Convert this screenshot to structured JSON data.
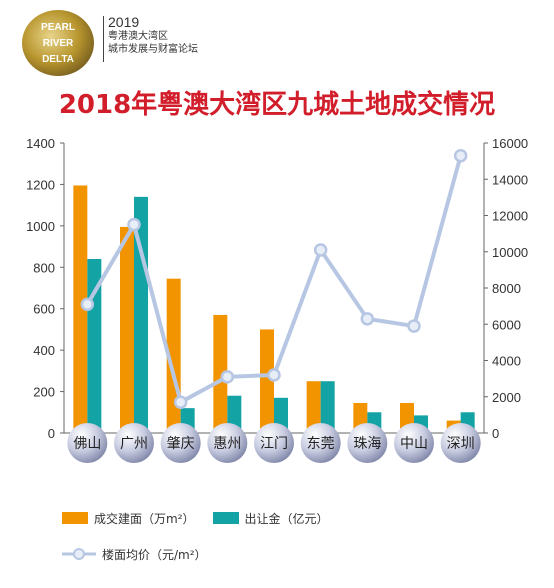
{
  "header": {
    "logo_lines": [
      "PEARL",
      "RIVER",
      "DELTA"
    ],
    "year": "2019",
    "subtitle_line1": "粤港澳大湾区",
    "subtitle_line2": "城市发展与财富论坛"
  },
  "colors": {
    "title": "#d21e2b",
    "area_bar": "#f29400",
    "amount_bar": "#14a3a5",
    "price_line": "#b7c7e3",
    "logo_gold": "#b8962e"
  },
  "chart_data": {
    "type": "bar",
    "title": "2018年粤澳大湾区九城土地成交情况",
    "categories": [
      "佛山",
      "广州",
      "肇庆",
      "惠州",
      "江门",
      "东莞",
      "珠海",
      "中山",
      "深圳"
    ],
    "series": [
      {
        "name": "成交建面（万m²）",
        "type": "bar",
        "axis": "left",
        "values": [
          1195,
          995,
          745,
          570,
          500,
          250,
          145,
          145,
          60
        ]
      },
      {
        "name": "出让金（亿元）",
        "type": "bar",
        "axis": "left",
        "values": [
          840,
          1140,
          120,
          180,
          170,
          250,
          100,
          85,
          100
        ]
      },
      {
        "name": "楼面均价（元/m²）",
        "type": "line",
        "axis": "right",
        "values": [
          7100,
          11500,
          1700,
          3100,
          3200,
          10100,
          6300,
          5900,
          15300
        ]
      }
    ],
    "ylim_left": [
      0,
      1400
    ],
    "yticks_left": [
      0,
      200,
      400,
      600,
      800,
      1000,
      1200,
      1400
    ],
    "ylim_right": [
      0,
      16000
    ],
    "yticks_right": [
      0,
      2000,
      4000,
      6000,
      8000,
      10000,
      12000,
      14000,
      16000
    ],
    "grid": false,
    "legend_position": "bottom-left"
  }
}
